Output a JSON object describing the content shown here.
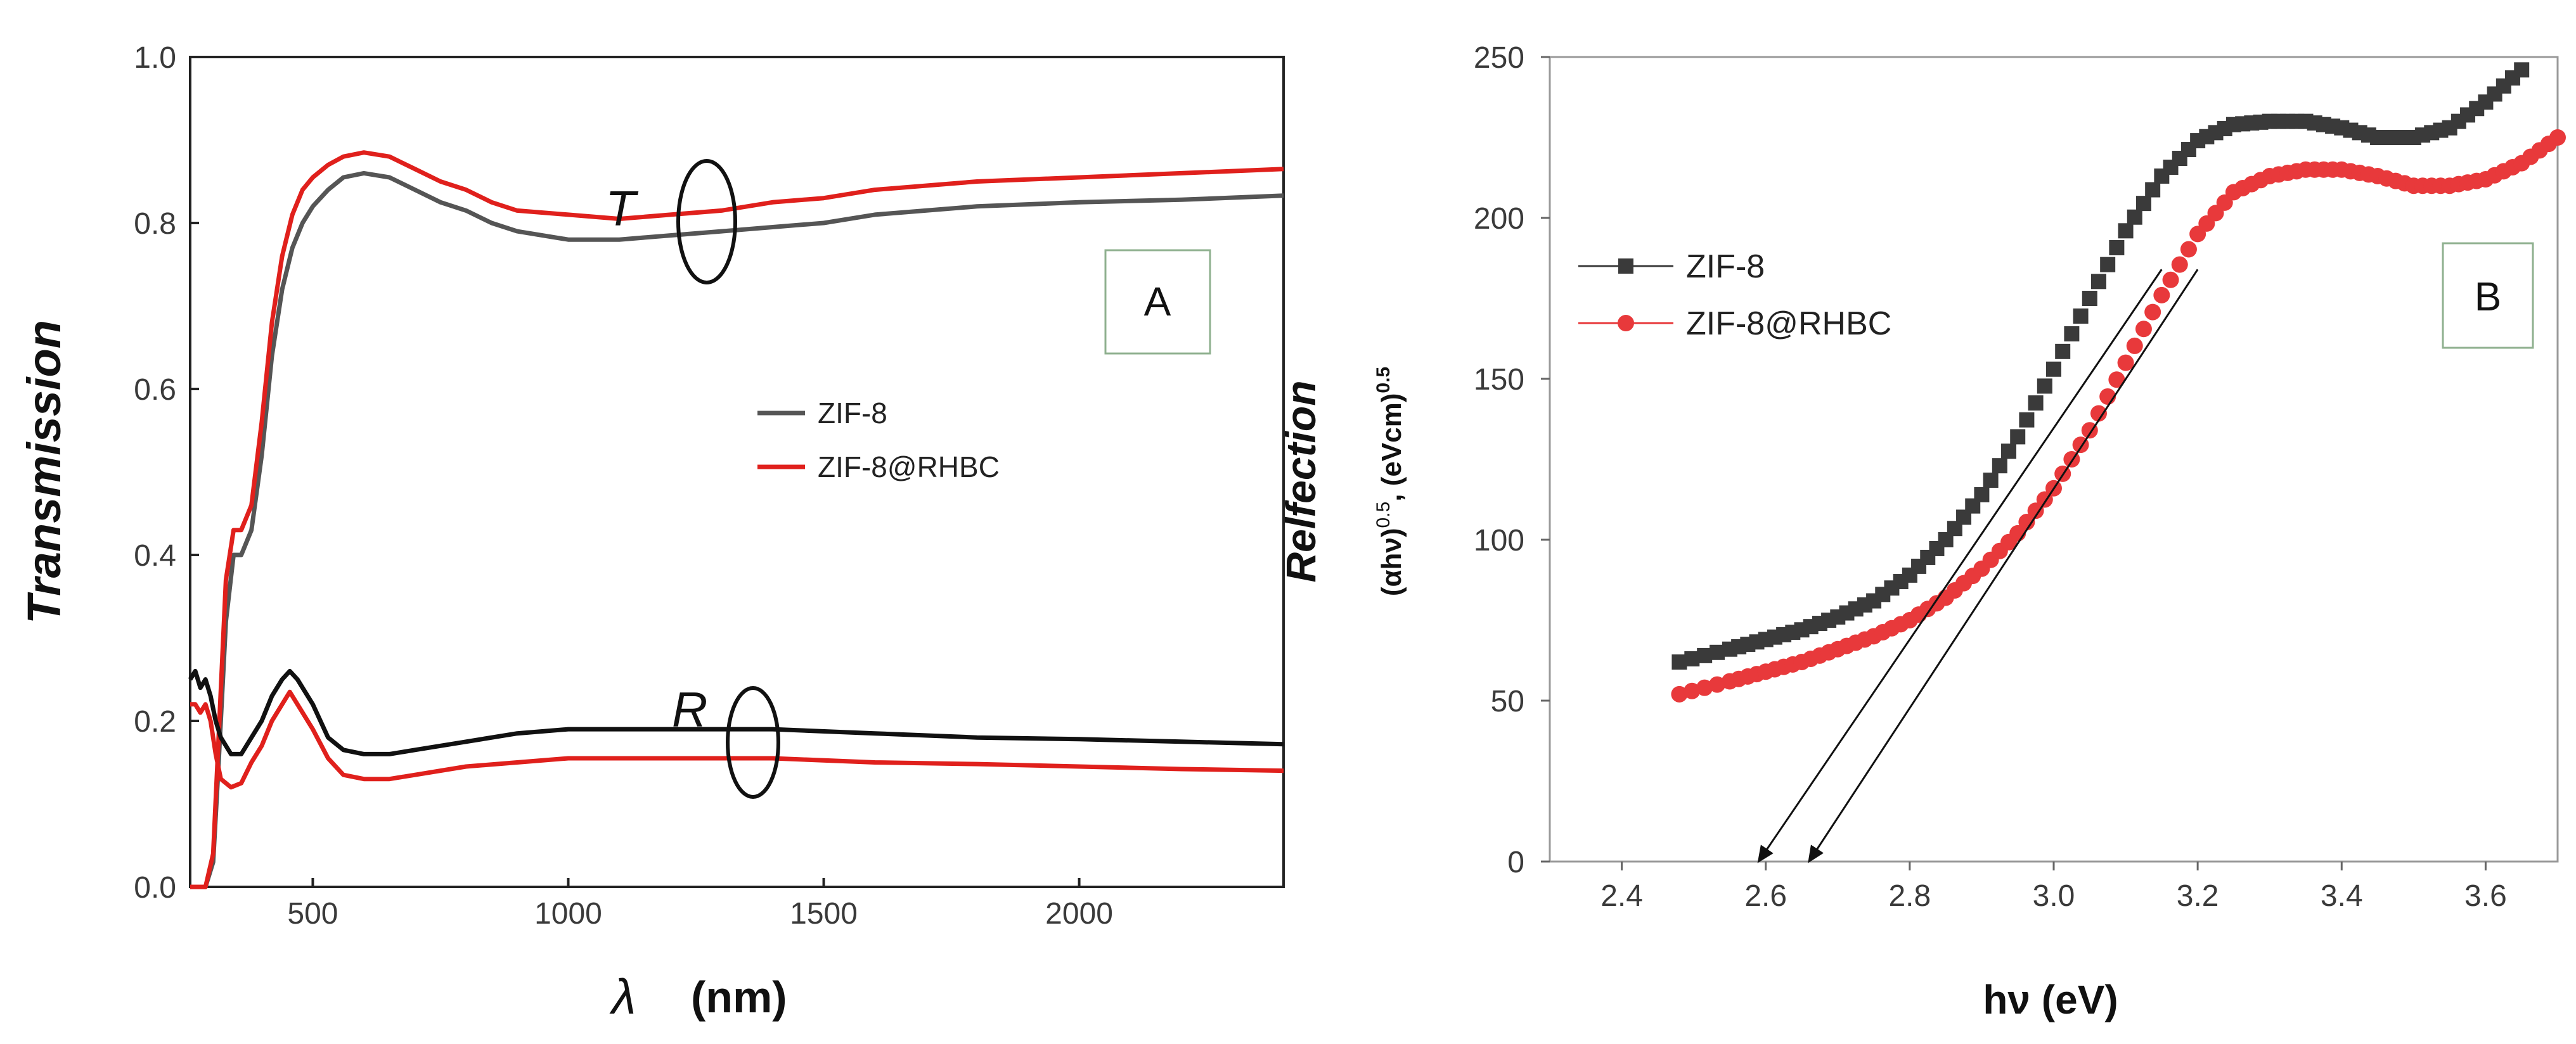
{
  "chart_data": [
    {
      "panel": "A",
      "type": "line",
      "panel_label": "A",
      "xlabel_symbol": "λ",
      "xlabel_unit": "(nm)",
      "ylabel": "Transmission",
      "xlim": [
        260,
        2400
      ],
      "ylim": [
        0.0,
        1.0
      ],
      "xticks": [
        500,
        1000,
        1500,
        2000
      ],
      "yticks": [
        0.0,
        0.2,
        0.4,
        0.6,
        0.8,
        1.0
      ],
      "legend": {
        "position": "center-right",
        "entries": [
          "ZIF-8",
          "ZIF-8@RHBC"
        ]
      },
      "annotations": [
        {
          "text": "T",
          "x": 1240,
          "y": 0.835
        },
        {
          "text": "R",
          "x": 1500,
          "y": 0.19
        }
      ],
      "series": [
        {
          "name": "ZIF-8 T",
          "color": "#555555",
          "x": [
            260,
            275,
            290,
            305,
            315,
            330,
            345,
            360,
            380,
            400,
            420,
            440,
            460,
            480,
            500,
            530,
            560,
            600,
            650,
            700,
            750,
            800,
            850,
            900,
            1000,
            1100,
            1200,
            1300,
            1400,
            1500,
            1600,
            1800,
            2000,
            2200,
            2400
          ],
          "y": [
            0.0,
            0.0,
            0.0,
            0.03,
            0.14,
            0.32,
            0.4,
            0.4,
            0.43,
            0.52,
            0.64,
            0.72,
            0.77,
            0.8,
            0.82,
            0.84,
            0.855,
            0.86,
            0.855,
            0.84,
            0.825,
            0.815,
            0.8,
            0.79,
            0.78,
            0.78,
            0.785,
            0.79,
            0.795,
            0.8,
            0.81,
            0.82,
            0.825,
            0.828,
            0.833
          ]
        },
        {
          "name": "ZIF-8@RHBC T",
          "color": "#e0201c",
          "x": [
            260,
            275,
            290,
            305,
            315,
            330,
            345,
            360,
            380,
            400,
            420,
            440,
            460,
            480,
            500,
            530,
            560,
            600,
            650,
            700,
            750,
            800,
            850,
            900,
            1000,
            1100,
            1200,
            1300,
            1400,
            1500,
            1600,
            1800,
            2000,
            2200,
            2400
          ],
          "y": [
            0.0,
            0.0,
            0.0,
            0.04,
            0.17,
            0.37,
            0.43,
            0.43,
            0.46,
            0.56,
            0.68,
            0.76,
            0.81,
            0.84,
            0.855,
            0.87,
            0.88,
            0.885,
            0.88,
            0.865,
            0.85,
            0.84,
            0.825,
            0.815,
            0.81,
            0.805,
            0.81,
            0.815,
            0.825,
            0.83,
            0.84,
            0.85,
            0.855,
            0.86,
            0.865
          ]
        },
        {
          "name": "ZIF-8 R",
          "color": "#111111",
          "x": [
            260,
            270,
            280,
            290,
            300,
            310,
            320,
            340,
            360,
            380,
            400,
            420,
            440,
            455,
            470,
            500,
            530,
            560,
            600,
            650,
            700,
            800,
            900,
            1000,
            1200,
            1400,
            1600,
            1800,
            2000,
            2200,
            2400
          ],
          "y": [
            0.25,
            0.26,
            0.24,
            0.25,
            0.23,
            0.2,
            0.18,
            0.16,
            0.16,
            0.18,
            0.2,
            0.23,
            0.25,
            0.26,
            0.25,
            0.22,
            0.18,
            0.165,
            0.16,
            0.16,
            0.165,
            0.175,
            0.185,
            0.19,
            0.19,
            0.19,
            0.185,
            0.18,
            0.178,
            0.175,
            0.172
          ]
        },
        {
          "name": "ZIF-8@RHBC R",
          "color": "#e0201c",
          "x": [
            260,
            270,
            280,
            290,
            300,
            310,
            320,
            340,
            360,
            380,
            400,
            420,
            440,
            455,
            470,
            500,
            530,
            560,
            600,
            650,
            700,
            800,
            900,
            1000,
            1200,
            1400,
            1600,
            1800,
            2000,
            2200,
            2400
          ],
          "y": [
            0.22,
            0.22,
            0.21,
            0.22,
            0.2,
            0.16,
            0.13,
            0.12,
            0.125,
            0.15,
            0.17,
            0.2,
            0.22,
            0.235,
            0.22,
            0.19,
            0.155,
            0.135,
            0.13,
            0.13,
            0.135,
            0.145,
            0.15,
            0.155,
            0.155,
            0.155,
            0.15,
            0.148,
            0.145,
            0.142,
            0.14
          ]
        }
      ]
    },
    {
      "panel": "B",
      "type": "scatter",
      "panel_label": "B",
      "xlabel": "hν (eV)",
      "ylabel_title": "Relfection",
      "ylabel_units": "(αhν)",
      "ylabel_units_sup": "0.5",
      "ylabel_units_mid": ", (eVcm)",
      "ylabel_units_sup2": "0.5",
      "xlim": [
        2.3,
        3.7
      ],
      "ylim": [
        0,
        250
      ],
      "xticks": [
        "2.4",
        "2.6",
        "2.8",
        "3.0",
        "3.2",
        "3.4",
        "3.6"
      ],
      "yticks": [
        "0",
        "50",
        "100",
        "150",
        "200",
        "250"
      ],
      "legend": {
        "position": "upper-left",
        "entries": [
          "ZIF-8",
          "ZIF-8@RHBC"
        ]
      },
      "series": [
        {
          "name": "ZIF-8",
          "color": "#3a3a3a",
          "marker": "square",
          "x": [
            2.48,
            2.55,
            2.6,
            2.65,
            2.7,
            2.75,
            2.8,
            2.85,
            2.9,
            2.95,
            3.0,
            3.05,
            3.1,
            3.15,
            3.2,
            3.25,
            3.3,
            3.35,
            3.4,
            3.45,
            3.5,
            3.55,
            3.6,
            3.65
          ],
          "y": [
            62,
            66,
            69,
            72,
            76,
            81,
            89,
            100,
            114,
            132,
            153,
            175,
            196,
            213,
            224,
            229,
            230,
            230,
            228,
            225,
            225,
            228,
            236,
            246
          ]
        },
        {
          "name": "ZIF-8@RHBC",
          "color": "#e8393b",
          "marker": "circle",
          "x": [
            2.48,
            2.55,
            2.6,
            2.65,
            2.7,
            2.75,
            2.8,
            2.85,
            2.9,
            2.95,
            3.0,
            3.05,
            3.1,
            3.15,
            3.2,
            3.25,
            3.3,
            3.35,
            3.4,
            3.45,
            3.5,
            3.55,
            3.6,
            3.65,
            3.7
          ],
          "y": [
            52,
            56,
            59,
            62,
            66,
            70,
            75,
            82,
            91,
            102,
            116,
            134,
            155,
            176,
            195,
            208,
            213,
            215,
            215,
            213,
            210,
            210,
            212,
            217,
            225
          ]
        },
        {
          "name": "ZIF-8 tangent",
          "style": "arrow",
          "x": [
            3.15,
            2.59
          ],
          "y": [
            184,
            0
          ]
        },
        {
          "name": "ZIF-8@RHBC tangent",
          "style": "arrow",
          "x": [
            3.2,
            2.66
          ],
          "y": [
            184,
            0
          ]
        }
      ]
    }
  ]
}
